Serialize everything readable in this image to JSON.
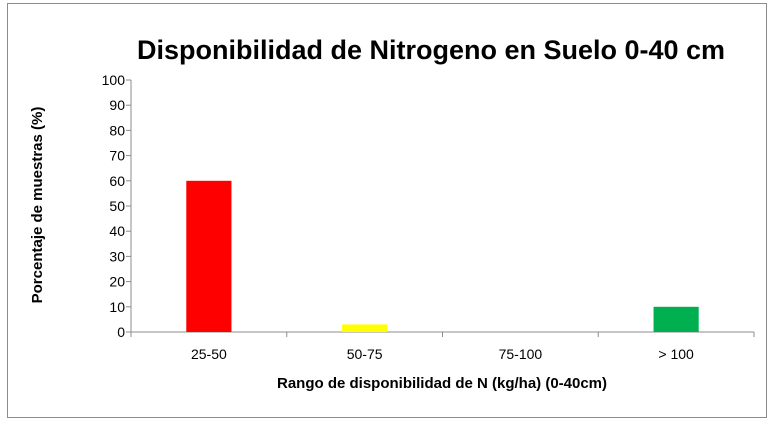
{
  "chart_data": {
    "type": "bar",
    "title": "Disponibilidad de Nitrogeno en Suelo 0-40 cm",
    "xlabel": "Rango de disponibilidad de N (kg/ha) (0-40cm)",
    "ylabel": "Porcentaje de muestras (%)",
    "categories": [
      "25-50",
      "50-75",
      "75-100",
      "> 100"
    ],
    "values": [
      60,
      3,
      0,
      10
    ],
    "bar_colors": [
      "#ff0000",
      "#ffff00",
      "#ffffff",
      "#00b050"
    ],
    "ylim": [
      0,
      100
    ],
    "yticks": [
      0,
      10,
      20,
      30,
      40,
      50,
      60,
      70,
      80,
      90,
      100
    ],
    "grid": false,
    "legend": "none"
  }
}
